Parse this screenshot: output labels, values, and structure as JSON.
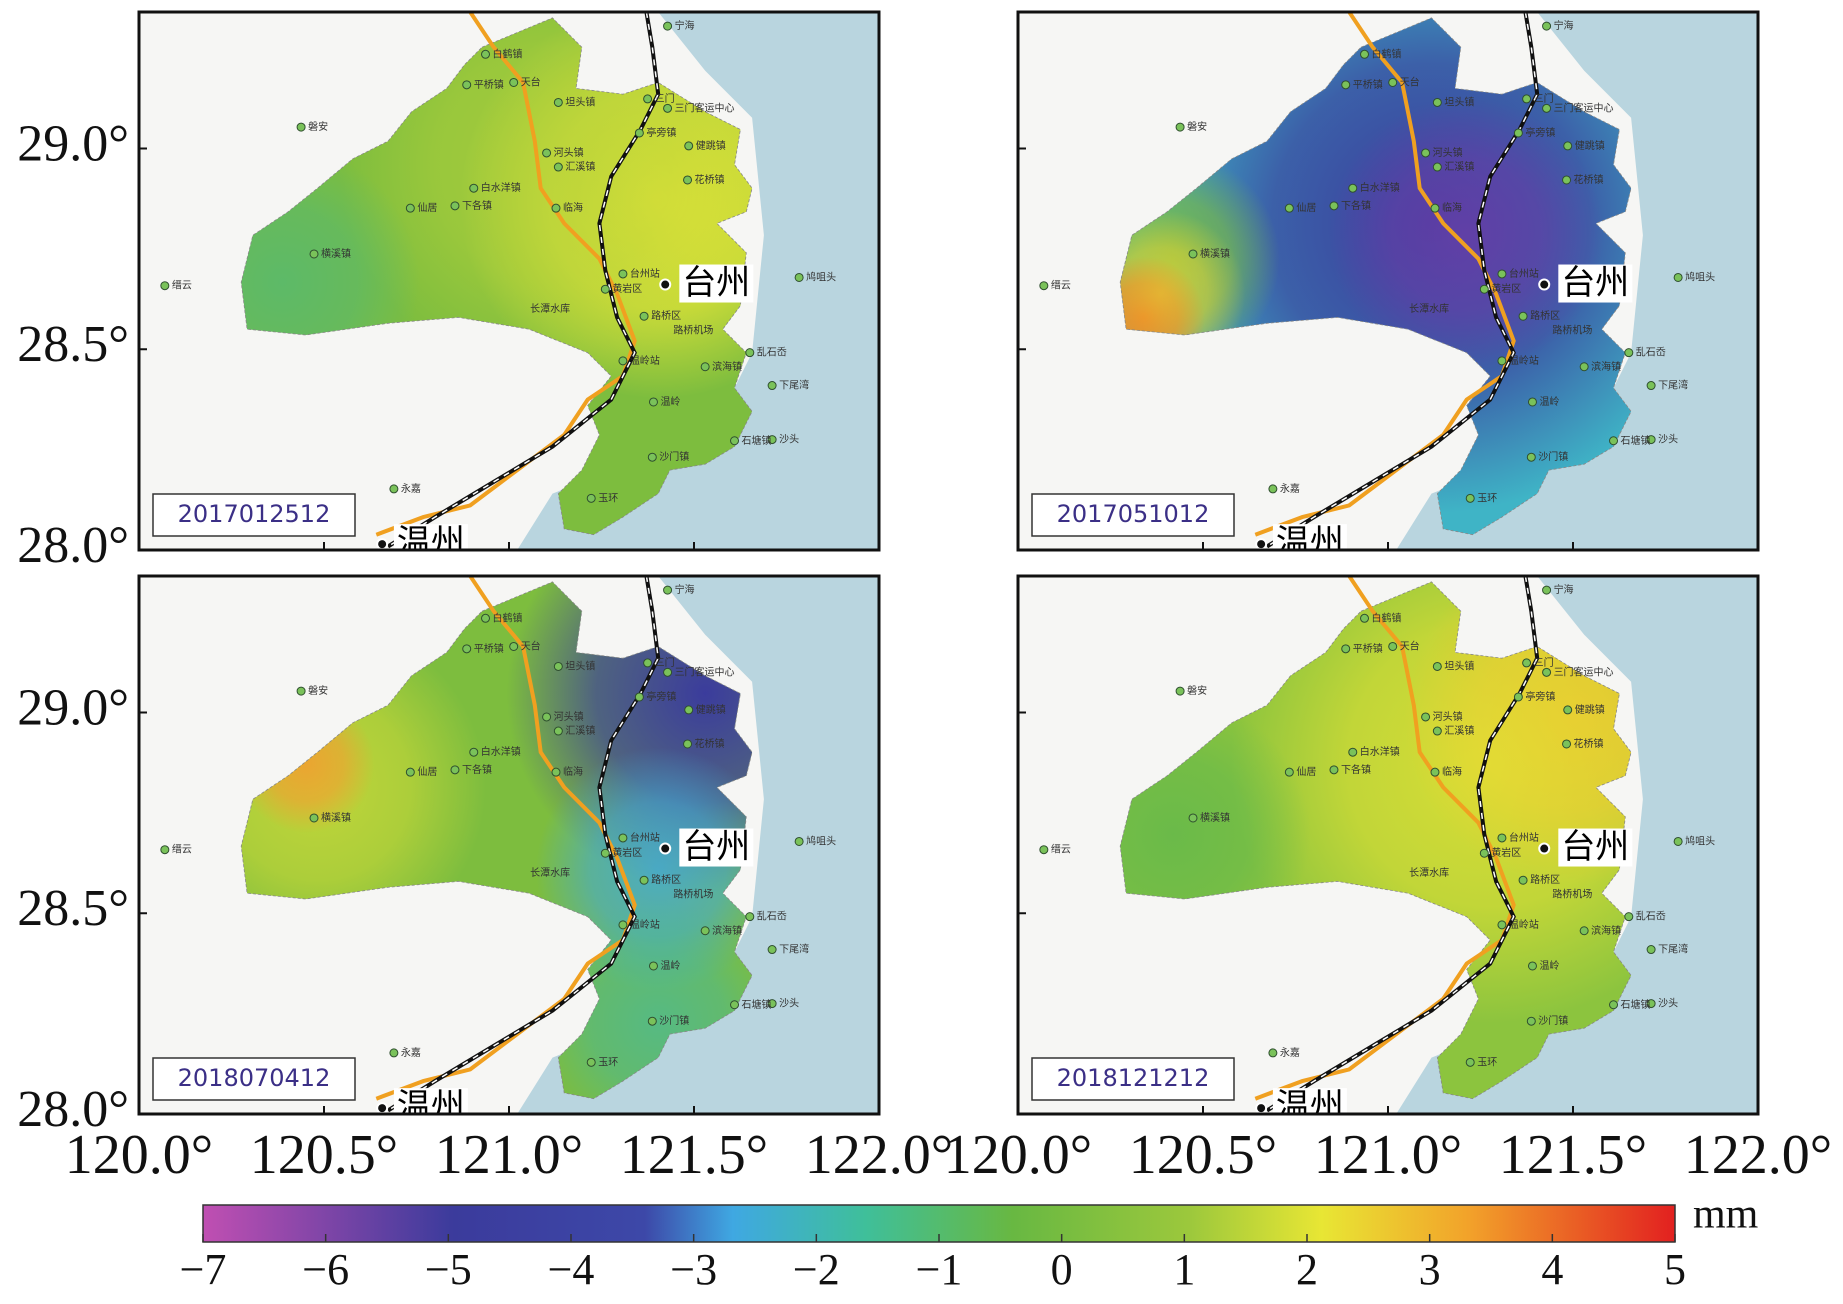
{
  "panels": [
    {
      "date": "2017012512"
    },
    {
      "date": "2017051012"
    },
    {
      "date": "2018070412"
    },
    {
      "date": "2018121212"
    }
  ],
  "axes": {
    "xlim": [
      120.0,
      122.0
    ],
    "ylim": [
      28.0,
      29.34
    ],
    "xticks": [
      {
        "value": 120.0,
        "label": "120.0°"
      },
      {
        "value": 120.5,
        "label": "120.5°"
      },
      {
        "value": 121.0,
        "label": "121.0°"
      },
      {
        "value": 121.5,
        "label": "121.5°"
      },
      {
        "value": 122.0,
        "label": "122.0°"
      }
    ],
    "yticks": [
      {
        "value": 28.0,
        "label": "28.0°"
      },
      {
        "value": 28.5,
        "label": "28.5°"
      },
      {
        "value": 29.0,
        "label": "29.0°"
      }
    ]
  },
  "cities": [
    "台州",
    "温州"
  ],
  "places": [
    "宁海",
    "白鹤镇",
    "天台",
    "平桥镇",
    "坦头镇",
    "三门",
    "三门客运中心",
    "磐安",
    "亭旁镇",
    "健跳镇",
    "河头镇",
    "汇溪镇",
    "花桥镇",
    "白水洋镇",
    "仙居",
    "下各镇",
    "临海",
    "横溪镇",
    "缙云",
    "台州站",
    "黄岩区",
    "鸠咀头",
    "长潭水库",
    "路桥区",
    "路桥机场",
    "温岭站",
    "乱石岙",
    "滨海镇",
    "下尾湾",
    "温岭",
    "沙头",
    "石塘镇",
    "永嘉",
    "沙门镇",
    "玉环"
  ],
  "colorbar": {
    "unit": "mm",
    "lim": [
      -7,
      5
    ],
    "ticks": [
      {
        "value": -7,
        "label": "−7"
      },
      {
        "value": -6,
        "label": "−6"
      },
      {
        "value": -5,
        "label": "−5"
      },
      {
        "value": -4,
        "label": "−4"
      },
      {
        "value": -3,
        "label": "−3"
      },
      {
        "value": -2,
        "label": "−2"
      },
      {
        "value": -1,
        "label": "−1"
      },
      0,
      1,
      2,
      3,
      4,
      5
    ]
  }
}
